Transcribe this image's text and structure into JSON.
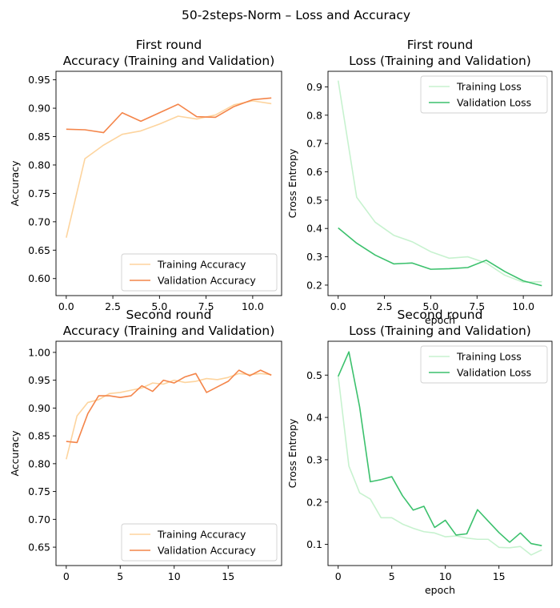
{
  "figure": {
    "suptitle": "50-2steps-Norm – Loss and Accuracy"
  },
  "colors": {
    "train_acc": "#fdd49e",
    "val_acc": "#f4854a",
    "train_loss": "#c7f2cf",
    "val_loss": "#3cc16d"
  },
  "chart_data": [
    {
      "type": "line",
      "title_line1": "First round",
      "title_line2": "Accuracy (Training and Validation)",
      "xlabel": "",
      "ylabel": "Accuracy",
      "xlim": [
        -0.55,
        11.55
      ],
      "ylim": [
        0.57,
        0.965
      ],
      "xticks": [
        0,
        2.5,
        5,
        7.5,
        10
      ],
      "xtick_labels": [
        "0.0",
        "2.5",
        "5.0",
        "7.5",
        "10.0"
      ],
      "yticks": [
        0.6,
        0.65,
        0.7,
        0.75,
        0.8,
        0.85,
        0.9,
        0.95
      ],
      "ytick_labels": [
        "0.60",
        "0.65",
        "0.70",
        "0.75",
        "0.80",
        "0.85",
        "0.90",
        "0.95"
      ],
      "legend_position": "lower-right",
      "x": [
        0,
        1,
        2,
        3,
        4,
        5,
        6,
        7,
        8,
        9,
        10,
        11
      ],
      "series": [
        {
          "name": "Training Accuracy",
          "color_key": "train_acc",
          "values": [
            0.672,
            0.811,
            0.835,
            0.854,
            0.86,
            0.872,
            0.886,
            0.881,
            0.888,
            0.906,
            0.913,
            0.908
          ]
        },
        {
          "name": "Validation Accuracy",
          "color_key": "val_acc",
          "values": [
            0.863,
            0.862,
            0.857,
            0.892,
            0.877,
            0.892,
            0.907,
            0.885,
            0.884,
            0.903,
            0.915,
            0.918
          ]
        }
      ]
    },
    {
      "type": "line",
      "title_line1": "First round",
      "title_line2": "Loss (Training and Validation)",
      "xlabel": "epoch",
      "ylabel": "Cross Entropy",
      "xlim": [
        -0.55,
        11.55
      ],
      "ylim": [
        0.163,
        0.955
      ],
      "xticks": [
        0,
        2.5,
        5,
        7.5,
        10
      ],
      "xtick_labels": [
        "0.0",
        "2.5",
        "5.0",
        "7.5",
        "10.0"
      ],
      "yticks": [
        0.2,
        0.3,
        0.4,
        0.5,
        0.6,
        0.7,
        0.8,
        0.9
      ],
      "ytick_labels": [
        "0.2",
        "0.3",
        "0.4",
        "0.5",
        "0.6",
        "0.7",
        "0.8",
        "0.9"
      ],
      "legend_position": "upper-right",
      "x": [
        0,
        1,
        2,
        3,
        4,
        5,
        6,
        7,
        8,
        9,
        10,
        11
      ],
      "series": [
        {
          "name": "Training Loss",
          "color_key": "train_loss",
          "values": [
            0.922,
            0.51,
            0.422,
            0.376,
            0.353,
            0.318,
            0.295,
            0.3,
            0.278,
            0.235,
            0.21,
            0.212
          ]
        },
        {
          "name": "Validation Loss",
          "color_key": "val_loss",
          "values": [
            0.402,
            0.348,
            0.306,
            0.275,
            0.278,
            0.256,
            0.258,
            0.262,
            0.288,
            0.248,
            0.215,
            0.198
          ]
        }
      ]
    },
    {
      "type": "line",
      "title_line1": "Second round",
      "title_line2": "Accuracy (Training and Validation)",
      "xlabel": "",
      "ylabel": "Accuracy",
      "xlim": [
        -0.95,
        19.95
      ],
      "ylim": [
        0.617,
        1.02
      ],
      "xticks": [
        0,
        5,
        10,
        15
      ],
      "xtick_labels": [
        "0",
        "5",
        "10",
        "15"
      ],
      "yticks": [
        0.65,
        0.7,
        0.75,
        0.8,
        0.85,
        0.9,
        0.95,
        1.0
      ],
      "ytick_labels": [
        "0.65",
        "0.70",
        "0.75",
        "0.80",
        "0.85",
        "0.90",
        "0.95",
        "1.00"
      ],
      "legend_position": "lower-right",
      "x": [
        0,
        1,
        2,
        3,
        4,
        5,
        6,
        7,
        8,
        9,
        10,
        11,
        12,
        13,
        14,
        15,
        16,
        17,
        18,
        19
      ],
      "series": [
        {
          "name": "Training Accuracy",
          "color_key": "train_acc",
          "values": [
            0.808,
            0.886,
            0.91,
            0.915,
            0.926,
            0.928,
            0.932,
            0.936,
            0.945,
            0.943,
            0.95,
            0.946,
            0.948,
            0.953,
            0.951,
            0.955,
            0.962,
            0.96,
            0.962,
            0.96
          ]
        },
        {
          "name": "Validation Accuracy",
          "color_key": "val_acc",
          "values": [
            0.84,
            0.838,
            0.89,
            0.922,
            0.922,
            0.919,
            0.922,
            0.94,
            0.93,
            0.95,
            0.945,
            0.956,
            0.962,
            0.928,
            0.938,
            0.948,
            0.968,
            0.958,
            0.968,
            0.959
          ]
        }
      ]
    },
    {
      "type": "line",
      "title_line1": "Second round",
      "title_line2": "Loss (Training and Validation)",
      "xlabel": "epoch",
      "ylabel": "Cross Entropy",
      "xlim": [
        -0.95,
        19.95
      ],
      "ylim": [
        0.05,
        0.58
      ],
      "xticks": [
        0,
        5,
        10,
        15
      ],
      "xtick_labels": [
        "0",
        "5",
        "10",
        "15"
      ],
      "yticks": [
        0.1,
        0.2,
        0.3,
        0.4,
        0.5
      ],
      "ytick_labels": [
        "0.1",
        "0.2",
        "0.3",
        "0.4",
        "0.5"
      ],
      "legend_position": "upper-right",
      "x": [
        0,
        1,
        2,
        3,
        4,
        5,
        6,
        7,
        8,
        9,
        10,
        11,
        12,
        13,
        14,
        15,
        16,
        17,
        18,
        19
      ],
      "series": [
        {
          "name": "Training Loss",
          "color_key": "train_loss",
          "values": [
            0.498,
            0.285,
            0.222,
            0.207,
            0.163,
            0.163,
            0.148,
            0.138,
            0.13,
            0.127,
            0.118,
            0.12,
            0.115,
            0.112,
            0.112,
            0.093,
            0.092,
            0.095,
            0.075,
            0.087
          ]
        },
        {
          "name": "Validation Loss",
          "color_key": "val_loss",
          "values": [
            0.497,
            0.555,
            0.425,
            0.248,
            0.253,
            0.26,
            0.215,
            0.181,
            0.19,
            0.14,
            0.157,
            0.122,
            0.125,
            0.182,
            0.155,
            0.128,
            0.105,
            0.127,
            0.102,
            0.097
          ]
        }
      ]
    }
  ]
}
